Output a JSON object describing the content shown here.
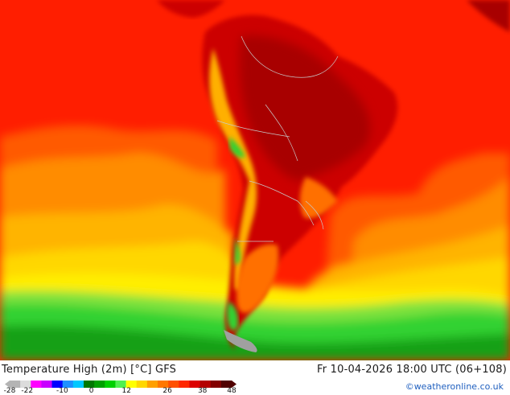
{
  "title": "Temperature High (2m) [°C] GFS",
  "valid_time": "Fr 10-04-2026 18:00 UTC (06+108)",
  "credit": "©weatheronline.co.uk",
  "scale": {
    "ticks": [
      {
        "value": -28,
        "label": "-28"
      },
      {
        "value": -22,
        "label": "-22"
      },
      {
        "value": -10,
        "label": "-10"
      },
      {
        "value": 0,
        "label": "0"
      },
      {
        "value": 12,
        "label": "12"
      },
      {
        "value": 26,
        "label": "26"
      },
      {
        "value": 38,
        "label": "38"
      },
      {
        "value": 48,
        "label": "48"
      }
    ],
    "min": -28,
    "max": 48,
    "colors": [
      "#b4b4b4",
      "#dcdcdc",
      "#ff00ff",
      "#c800ff",
      "#0000ff",
      "#1e90ff",
      "#00c8ff",
      "#007800",
      "#00a000",
      "#00d000",
      "#50f050",
      "#ffff00",
      "#ffd700",
      "#ffa000",
      "#ff7800",
      "#ff5000",
      "#ff2800",
      "#dc0000",
      "#b40000",
      "#820000",
      "#500000"
    ]
  },
  "map_colors": {
    "ocean_warm": "#ff1e00",
    "ocean_mid": "#ff5a00",
    "ocean_orange": "#ff8c00",
    "ocean_yellow": "#ffc800",
    "ocean_lightyellow": "#ffee00",
    "ocean_green": "#32d232",
    "ocean_darkgreen": "#14a014",
    "land_hot": "#a80000",
    "land_warm": "#cc0000",
    "andes": "#ffb000",
    "patagonia": "#ff7000",
    "borders": "#c8c8c8",
    "land_cold": "#a0a0a0"
  }
}
